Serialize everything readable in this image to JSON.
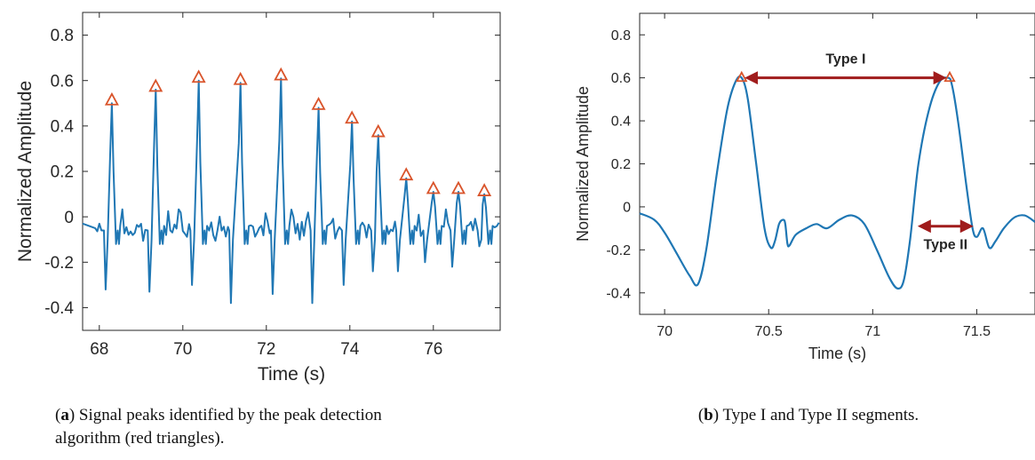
{
  "panel_a": {
    "caption_letter": "a",
    "caption_text": "Signal peaks identified by the peak detection algorithm (red triangles)."
  },
  "panel_b": {
    "caption_letter": "b",
    "caption_text": "Type I and Type II segments."
  },
  "colors": {
    "line": "#1f77b4",
    "peak_marker": "#d9542b",
    "annotation": "#a01c1c"
  },
  "chart_data": [
    {
      "type": "line",
      "xlabel": "Time (s)",
      "ylabel": "Normalized Amplitude",
      "xlim": [
        67.6,
        77.6
      ],
      "ylim": [
        -0.5,
        0.9
      ],
      "xticks": [
        "68",
        "70",
        "72",
        "74",
        "76"
      ],
      "yticks": [
        "-0.4",
        "-0.2",
        "0",
        "0.2",
        "0.4",
        "0.6",
        "0.8"
      ],
      "peaks": {
        "x": [
          68.3,
          69.35,
          70.38,
          71.38,
          72.35,
          73.25,
          74.05,
          74.68,
          75.35,
          76.0,
          76.6,
          77.22
        ],
        "y": [
          0.5,
          0.56,
          0.6,
          0.59,
          0.61,
          0.48,
          0.42,
          0.36,
          0.17,
          0.11,
          0.11,
          0.1
        ]
      },
      "troughs": {
        "x": [
          68.15,
          69.2,
          70.22,
          71.15,
          72.15,
          73.1,
          73.85,
          74.55,
          75.15,
          75.8,
          76.45,
          77.1
        ],
        "y": [
          -0.32,
          -0.33,
          -0.3,
          -0.38,
          -0.34,
          -0.38,
          -0.3,
          -0.24,
          -0.24,
          -0.2,
          -0.22,
          -0.13
        ]
      }
    },
    {
      "type": "line",
      "xlabel": "Time (s)",
      "ylabel": "Normalized Amplitude",
      "xlim": [
        69.88,
        71.78
      ],
      "ylim": [
        -0.5,
        0.9
      ],
      "xticks": [
        "70",
        "70.5",
        "71",
        "71.5"
      ],
      "yticks": [
        "-0.4",
        "-0.2",
        "0",
        "0.2",
        "0.4",
        "0.6",
        "0.8"
      ],
      "series": [
        {
          "x": [
            69.88,
            69.95,
            70.0,
            70.06,
            70.12,
            70.16,
            70.2,
            70.25,
            70.3,
            70.34,
            70.37,
            70.4,
            70.44,
            70.48,
            70.51,
            70.53,
            70.55,
            70.57,
            70.58,
            70.59,
            70.6,
            70.63,
            70.68,
            70.73,
            70.78,
            70.84,
            70.9,
            70.96,
            71.02,
            71.08,
            71.12,
            71.15,
            71.18,
            71.22,
            71.27,
            71.32,
            71.36,
            71.38,
            71.41,
            71.45,
            71.48,
            71.5,
            71.53,
            71.56,
            71.59,
            71.63,
            71.68,
            71.73,
            71.78
          ],
          "y": [
            -0.03,
            -0.06,
            -0.12,
            -0.22,
            -0.32,
            -0.36,
            -0.2,
            0.15,
            0.45,
            0.58,
            0.6,
            0.5,
            0.2,
            -0.1,
            -0.19,
            -0.16,
            -0.08,
            -0.06,
            -0.08,
            -0.17,
            -0.18,
            -0.13,
            -0.1,
            -0.08,
            -0.1,
            -0.06,
            -0.04,
            -0.08,
            -0.2,
            -0.33,
            -0.38,
            -0.34,
            -0.15,
            0.2,
            0.45,
            0.58,
            0.6,
            0.57,
            0.4,
            0.1,
            -0.1,
            -0.14,
            -0.1,
            -0.19,
            -0.16,
            -0.1,
            -0.05,
            -0.04,
            -0.07
          ]
        }
      ],
      "markers": {
        "x": [
          70.37,
          71.37
        ],
        "y": [
          0.6,
          0.6
        ]
      },
      "annotations": {
        "type1": {
          "label": "Type I",
          "x1": 70.38,
          "x2": 71.36,
          "y": 0.6
        },
        "type2": {
          "label": "Type II",
          "x1": 71.22,
          "x2": 71.48,
          "y": -0.09
        }
      }
    }
  ]
}
